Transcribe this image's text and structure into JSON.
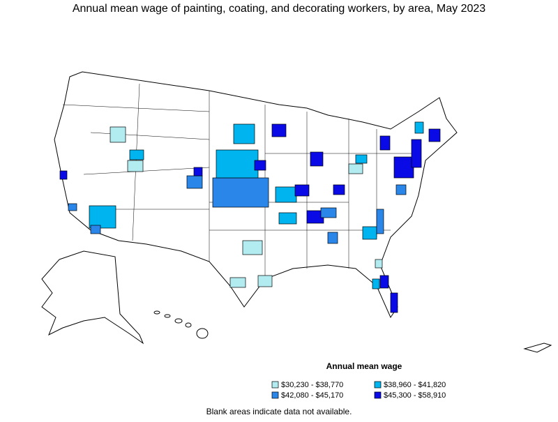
{
  "title": "Annual mean wage of painting, coating, and decorating workers, by area, May 2023",
  "legend": {
    "title": "Annual mean wage",
    "items": [
      {
        "label": "$30,230 - $38,770",
        "color": "#b2ecf0"
      },
      {
        "label": "$38,960 - $41,820",
        "color": "#00b4f0"
      },
      {
        "label": "$42,080 - $45,170",
        "color": "#2a86e8"
      },
      {
        "label": "$45,300 - $58,910",
        "color": "#0a0ae6"
      }
    ]
  },
  "note": "Blank areas indicate data not available."
}
